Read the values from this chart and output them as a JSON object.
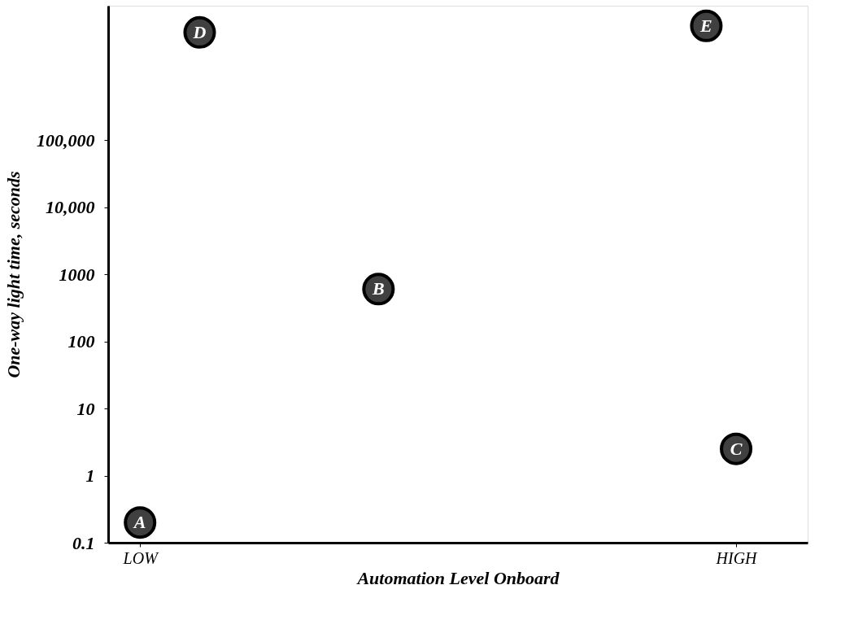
{
  "chart_data": {
    "type": "scatter",
    "xlabel": "Automation Level Onboard",
    "ylabel": "One-way light time, seconds",
    "categories": [
      "LOW",
      null,
      null,
      null,
      null,
      null,
      null,
      null,
      null,
      null,
      null,
      null,
      null,
      null,
      null,
      null,
      null,
      null,
      null,
      null,
      "HIGH"
    ],
    "values": [
      0.2,
      null,
      4000000,
      null,
      null,
      null,
      null,
      null,
      600,
      null,
      null,
      null,
      null,
      null,
      null,
      null,
      null,
      null,
      null,
      5000000,
      2.5
    ],
    "value_labels": [
      "A",
      null,
      "D",
      null,
      null,
      null,
      null,
      null,
      "B",
      null,
      null,
      null,
      null,
      null,
      null,
      null,
      null,
      null,
      null,
      "E",
      "C"
    ],
    "color": "#404040",
    "marker": "circle",
    "log": "y",
    "ylim": [
      0.1,
      10000000
    ],
    "yticks": [
      {
        "value": 0.1,
        "label": "0.1"
      },
      1,
      10,
      100,
      1000,
      {
        "value": 10000,
        "label": "10,000"
      },
      {
        "value": 100000,
        "label": "100,000"
      }
    ]
  }
}
